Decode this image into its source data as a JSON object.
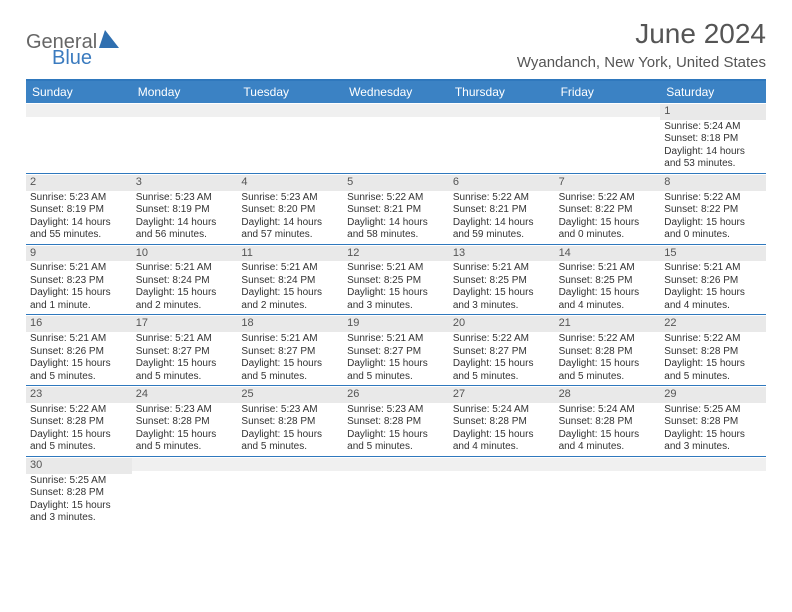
{
  "logo": {
    "text1": "General",
    "text2": "Blue"
  },
  "title": "June 2024",
  "location": "Wyandanch, New York, United States",
  "colors": {
    "header_bg": "#3b82c4",
    "border": "#2f78bd",
    "daynum_bg": "#e9e9e9",
    "text": "#333333"
  },
  "day_names": [
    "Sunday",
    "Monday",
    "Tuesday",
    "Wednesday",
    "Thursday",
    "Friday",
    "Saturday"
  ],
  "weeks": [
    [
      {
        "n": "",
        "sunrise": "",
        "sunset": "",
        "daylight": ""
      },
      {
        "n": "",
        "sunrise": "",
        "sunset": "",
        "daylight": ""
      },
      {
        "n": "",
        "sunrise": "",
        "sunset": "",
        "daylight": ""
      },
      {
        "n": "",
        "sunrise": "",
        "sunset": "",
        "daylight": ""
      },
      {
        "n": "",
        "sunrise": "",
        "sunset": "",
        "daylight": ""
      },
      {
        "n": "",
        "sunrise": "",
        "sunset": "",
        "daylight": ""
      },
      {
        "n": "1",
        "sunrise": "Sunrise: 5:24 AM",
        "sunset": "Sunset: 8:18 PM",
        "daylight": "Daylight: 14 hours and 53 minutes."
      }
    ],
    [
      {
        "n": "2",
        "sunrise": "Sunrise: 5:23 AM",
        "sunset": "Sunset: 8:19 PM",
        "daylight": "Daylight: 14 hours and 55 minutes."
      },
      {
        "n": "3",
        "sunrise": "Sunrise: 5:23 AM",
        "sunset": "Sunset: 8:19 PM",
        "daylight": "Daylight: 14 hours and 56 minutes."
      },
      {
        "n": "4",
        "sunrise": "Sunrise: 5:23 AM",
        "sunset": "Sunset: 8:20 PM",
        "daylight": "Daylight: 14 hours and 57 minutes."
      },
      {
        "n": "5",
        "sunrise": "Sunrise: 5:22 AM",
        "sunset": "Sunset: 8:21 PM",
        "daylight": "Daylight: 14 hours and 58 minutes."
      },
      {
        "n": "6",
        "sunrise": "Sunrise: 5:22 AM",
        "sunset": "Sunset: 8:21 PM",
        "daylight": "Daylight: 14 hours and 59 minutes."
      },
      {
        "n": "7",
        "sunrise": "Sunrise: 5:22 AM",
        "sunset": "Sunset: 8:22 PM",
        "daylight": "Daylight: 15 hours and 0 minutes."
      },
      {
        "n": "8",
        "sunrise": "Sunrise: 5:22 AM",
        "sunset": "Sunset: 8:22 PM",
        "daylight": "Daylight: 15 hours and 0 minutes."
      }
    ],
    [
      {
        "n": "9",
        "sunrise": "Sunrise: 5:21 AM",
        "sunset": "Sunset: 8:23 PM",
        "daylight": "Daylight: 15 hours and 1 minute."
      },
      {
        "n": "10",
        "sunrise": "Sunrise: 5:21 AM",
        "sunset": "Sunset: 8:24 PM",
        "daylight": "Daylight: 15 hours and 2 minutes."
      },
      {
        "n": "11",
        "sunrise": "Sunrise: 5:21 AM",
        "sunset": "Sunset: 8:24 PM",
        "daylight": "Daylight: 15 hours and 2 minutes."
      },
      {
        "n": "12",
        "sunrise": "Sunrise: 5:21 AM",
        "sunset": "Sunset: 8:25 PM",
        "daylight": "Daylight: 15 hours and 3 minutes."
      },
      {
        "n": "13",
        "sunrise": "Sunrise: 5:21 AM",
        "sunset": "Sunset: 8:25 PM",
        "daylight": "Daylight: 15 hours and 3 minutes."
      },
      {
        "n": "14",
        "sunrise": "Sunrise: 5:21 AM",
        "sunset": "Sunset: 8:25 PM",
        "daylight": "Daylight: 15 hours and 4 minutes."
      },
      {
        "n": "15",
        "sunrise": "Sunrise: 5:21 AM",
        "sunset": "Sunset: 8:26 PM",
        "daylight": "Daylight: 15 hours and 4 minutes."
      }
    ],
    [
      {
        "n": "16",
        "sunrise": "Sunrise: 5:21 AM",
        "sunset": "Sunset: 8:26 PM",
        "daylight": "Daylight: 15 hours and 5 minutes."
      },
      {
        "n": "17",
        "sunrise": "Sunrise: 5:21 AM",
        "sunset": "Sunset: 8:27 PM",
        "daylight": "Daylight: 15 hours and 5 minutes."
      },
      {
        "n": "18",
        "sunrise": "Sunrise: 5:21 AM",
        "sunset": "Sunset: 8:27 PM",
        "daylight": "Daylight: 15 hours and 5 minutes."
      },
      {
        "n": "19",
        "sunrise": "Sunrise: 5:21 AM",
        "sunset": "Sunset: 8:27 PM",
        "daylight": "Daylight: 15 hours and 5 minutes."
      },
      {
        "n": "20",
        "sunrise": "Sunrise: 5:22 AM",
        "sunset": "Sunset: 8:27 PM",
        "daylight": "Daylight: 15 hours and 5 minutes."
      },
      {
        "n": "21",
        "sunrise": "Sunrise: 5:22 AM",
        "sunset": "Sunset: 8:28 PM",
        "daylight": "Daylight: 15 hours and 5 minutes."
      },
      {
        "n": "22",
        "sunrise": "Sunrise: 5:22 AM",
        "sunset": "Sunset: 8:28 PM",
        "daylight": "Daylight: 15 hours and 5 minutes."
      }
    ],
    [
      {
        "n": "23",
        "sunrise": "Sunrise: 5:22 AM",
        "sunset": "Sunset: 8:28 PM",
        "daylight": "Daylight: 15 hours and 5 minutes."
      },
      {
        "n": "24",
        "sunrise": "Sunrise: 5:23 AM",
        "sunset": "Sunset: 8:28 PM",
        "daylight": "Daylight: 15 hours and 5 minutes."
      },
      {
        "n": "25",
        "sunrise": "Sunrise: 5:23 AM",
        "sunset": "Sunset: 8:28 PM",
        "daylight": "Daylight: 15 hours and 5 minutes."
      },
      {
        "n": "26",
        "sunrise": "Sunrise: 5:23 AM",
        "sunset": "Sunset: 8:28 PM",
        "daylight": "Daylight: 15 hours and 5 minutes."
      },
      {
        "n": "27",
        "sunrise": "Sunrise: 5:24 AM",
        "sunset": "Sunset: 8:28 PM",
        "daylight": "Daylight: 15 hours and 4 minutes."
      },
      {
        "n": "28",
        "sunrise": "Sunrise: 5:24 AM",
        "sunset": "Sunset: 8:28 PM",
        "daylight": "Daylight: 15 hours and 4 minutes."
      },
      {
        "n": "29",
        "sunrise": "Sunrise: 5:25 AM",
        "sunset": "Sunset: 8:28 PM",
        "daylight": "Daylight: 15 hours and 3 minutes."
      }
    ],
    [
      {
        "n": "30",
        "sunrise": "Sunrise: 5:25 AM",
        "sunset": "Sunset: 8:28 PM",
        "daylight": "Daylight: 15 hours and 3 minutes."
      },
      {
        "n": "",
        "sunrise": "",
        "sunset": "",
        "daylight": ""
      },
      {
        "n": "",
        "sunrise": "",
        "sunset": "",
        "daylight": ""
      },
      {
        "n": "",
        "sunrise": "",
        "sunset": "",
        "daylight": ""
      },
      {
        "n": "",
        "sunrise": "",
        "sunset": "",
        "daylight": ""
      },
      {
        "n": "",
        "sunrise": "",
        "sunset": "",
        "daylight": ""
      },
      {
        "n": "",
        "sunrise": "",
        "sunset": "",
        "daylight": ""
      }
    ]
  ]
}
